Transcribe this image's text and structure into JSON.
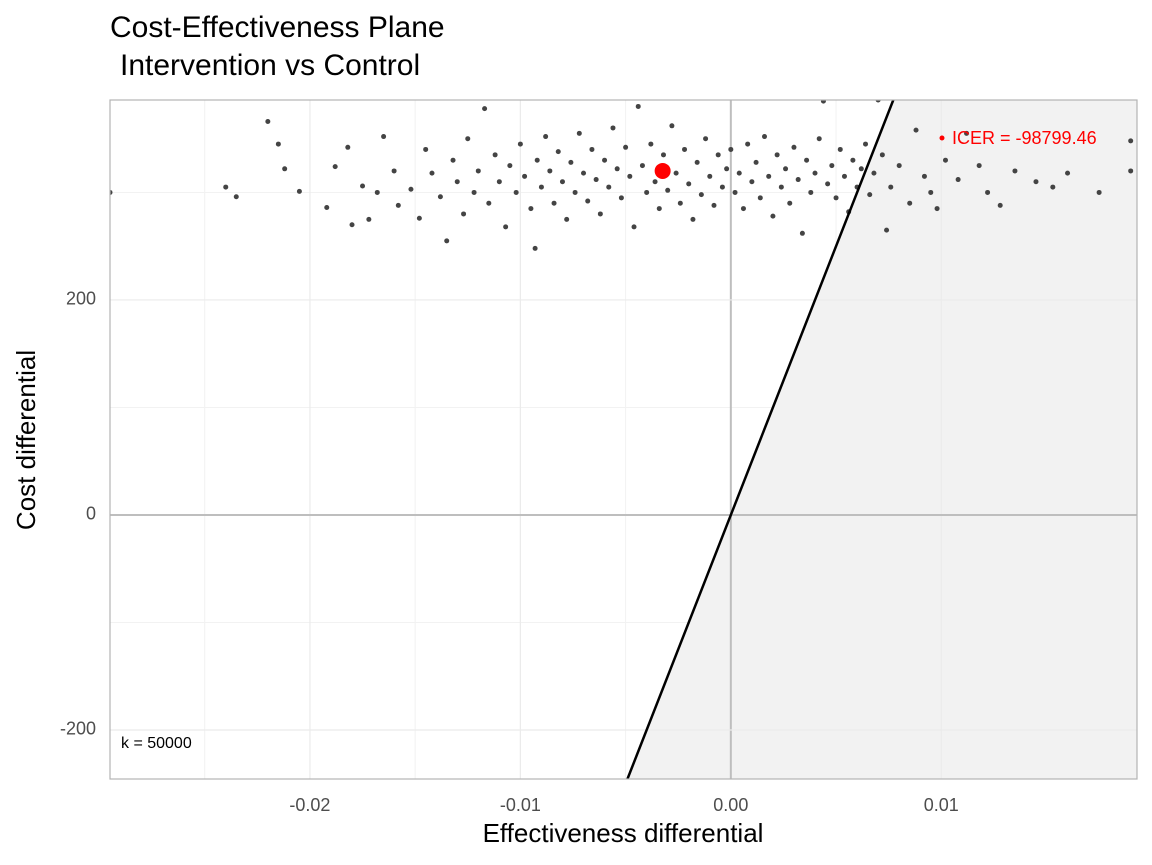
{
  "chart_data": {
    "type": "scatter",
    "title": "Cost-Effectiveness Plane",
    "subtitle": "Intervention vs Control",
    "x_label": "Effectiveness differential",
    "y_label": "Cost differential",
    "xlim": [
      -0.0295,
      0.0193
    ],
    "ylim": [
      -245.6,
      386
    ],
    "xticks": [
      -0.02,
      -0.01,
      {
        "value": 0,
        "label": "0.00"
      },
      0.01
    ],
    "yticks": [
      -200,
      0,
      200
    ],
    "x_minor_grid": [
      -0.025,
      -0.015,
      -0.005,
      0.005,
      0.015
    ],
    "y_minor_grid": [
      -100,
      100,
      300
    ],
    "grid": true,
    "wtp": 50000,
    "wtp_label": "k = 50000",
    "region_color": "#f2f2f2",
    "series": [
      {
        "color": "#444444",
        "x": [
          -0.0295,
          -0.022,
          -0.024,
          -0.0235,
          -0.0215,
          -0.0212,
          -0.0205,
          -0.0192,
          -0.0188,
          -0.0182,
          -0.018,
          -0.0175,
          -0.0172,
          -0.0168,
          -0.0165,
          -0.016,
          -0.0158,
          -0.0152,
          -0.0148,
          -0.0145,
          -0.0142,
          -0.0138,
          -0.0135,
          -0.0132,
          -0.013,
          -0.0127,
          -0.0125,
          -0.0122,
          -0.012,
          -0.0117,
          -0.0115,
          -0.0112,
          -0.011,
          -0.0107,
          -0.0105,
          -0.0102,
          -0.01,
          -0.0098,
          -0.0095,
          -0.0093,
          -0.0092,
          -0.009,
          -0.0088,
          -0.0086,
          -0.0084,
          -0.0082,
          -0.008,
          -0.0078,
          -0.0076,
          -0.0074,
          -0.0072,
          -0.007,
          -0.0068,
          -0.0066,
          -0.0064,
          -0.0062,
          -0.006,
          -0.0058,
          -0.0056,
          -0.0054,
          -0.0052,
          -0.005,
          -0.0048,
          -0.0046,
          -0.0044,
          -0.0042,
          -0.004,
          -0.0038,
          -0.0036,
          -0.0034,
          -0.0032,
          -0.003,
          -0.0028,
          -0.0026,
          -0.0024,
          -0.0022,
          -0.002,
          -0.0018,
          -0.0016,
          -0.0014,
          -0.0012,
          -0.001,
          -0.0008,
          -0.0006,
          -0.0004,
          -0.0002,
          0,
          0.0002,
          0.0004,
          0.0006,
          0.0008,
          0.001,
          0.0012,
          0.0014,
          0.0016,
          0.0018,
          0.002,
          0.0022,
          0.0024,
          0.0026,
          0.0028,
          0.003,
          0.0032,
          0.0034,
          0.0036,
          0.0038,
          0.004,
          0.0042,
          0.0044,
          0.0046,
          0.0048,
          0.005,
          0.0052,
          0.0054,
          0.0056,
          0.0058,
          0.006,
          0.0062,
          0.0064,
          0.0066,
          0.0068,
          0.007,
          0.0072,
          0.0074,
          0.0076,
          0.008,
          0.0085,
          0.0088,
          0.0092,
          0.0095,
          0.0098,
          0.0102,
          0.0108,
          0.0112,
          0.0118,
          0.0122,
          0.0128,
          0.0135,
          0.0145,
          0.0153,
          0.016,
          0.0175,
          0.019,
          0.019
        ],
        "y": [
          300,
          366,
          305,
          296,
          345,
          322,
          301,
          286,
          324,
          342,
          270,
          306,
          275,
          300,
          352,
          320,
          288,
          303,
          276,
          340,
          318,
          296,
          255,
          330,
          310,
          280,
          350,
          300,
          320,
          378,
          290,
          335,
          310,
          268,
          325,
          300,
          345,
          315,
          285,
          248,
          330,
          305,
          352,
          320,
          290,
          338,
          310,
          275,
          328,
          300,
          355,
          318,
          292,
          340,
          312,
          280,
          330,
          305,
          360,
          322,
          295,
          342,
          315,
          268,
          380,
          325,
          300,
          345,
          310,
          285,
          335,
          302,
          362,
          318,
          290,
          340,
          308,
          275,
          328,
          298,
          350,
          315,
          288,
          335,
          305,
          322,
          340,
          300,
          318,
          285,
          345,
          310,
          328,
          295,
          352,
          315,
          278,
          335,
          305,
          322,
          290,
          342,
          312,
          262,
          330,
          300,
          318,
          350,
          385,
          308,
          325,
          295,
          340,
          315,
          282,
          330,
          305,
          322,
          345,
          298,
          318,
          386,
          335,
          265,
          305,
          325,
          290,
          358,
          315,
          300,
          285,
          330,
          312,
          355,
          325,
          300,
          288,
          320,
          310,
          305,
          318,
          300,
          320,
          348
        ]
      }
    ],
    "mean_point": {
      "x": -0.00324,
      "y": 320,
      "color": "#ff0000"
    },
    "icer_label": "ICER = -98799.46"
  }
}
